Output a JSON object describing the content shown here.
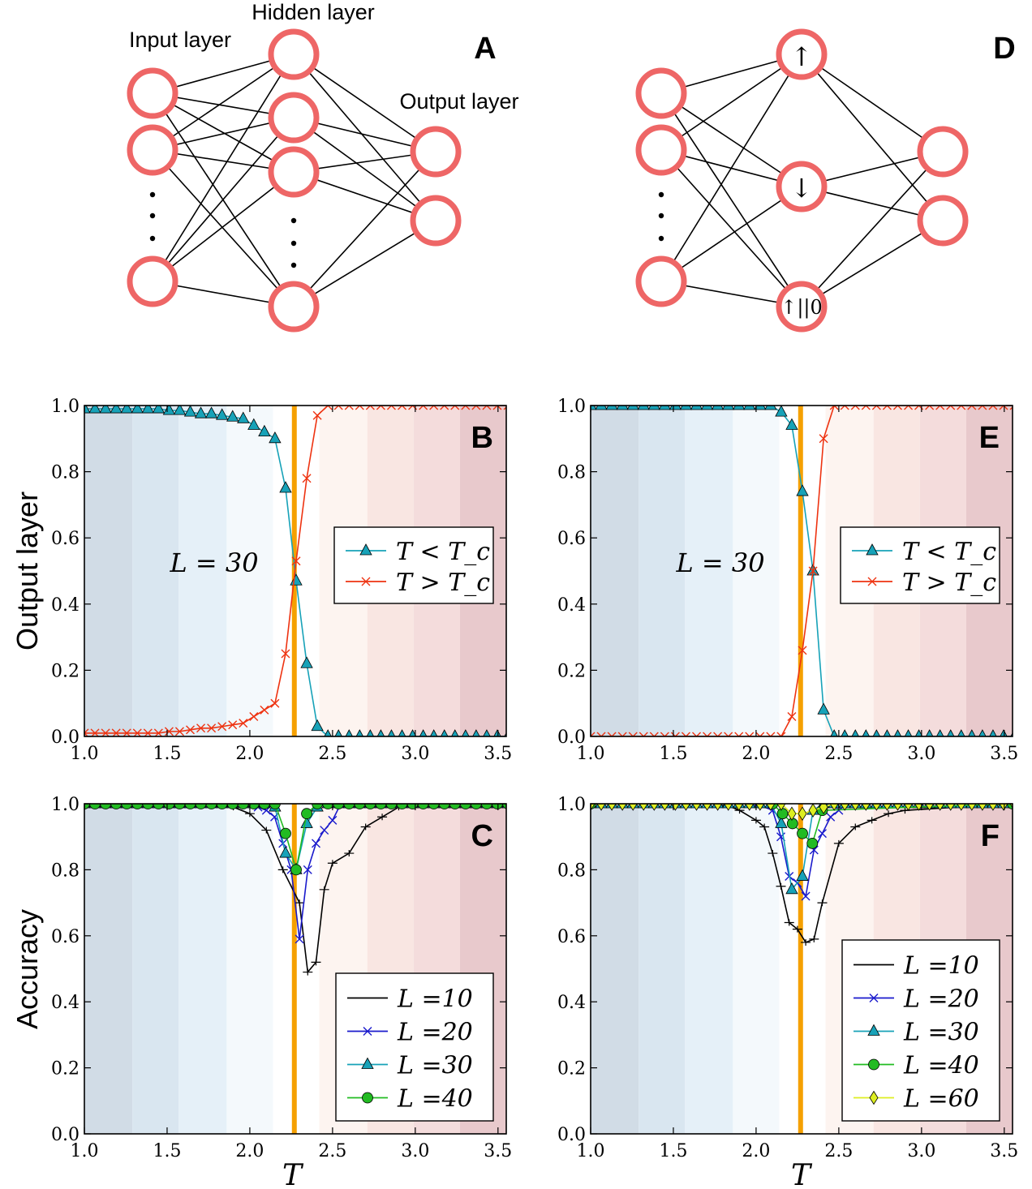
{
  "diagrams": {
    "A": {
      "panel_label": "A",
      "input_label": "Input layer",
      "hidden_label": "Hidden layer",
      "output_label": "Output layer",
      "node_color": "#ee6666"
    },
    "D": {
      "panel_label": "D",
      "hidden_symbols": [
        "↑",
        "↓",
        "↑||0"
      ],
      "node_color": "#ee6666"
    }
  },
  "shared": {
    "row_ylabels": [
      "Output layer",
      "Accuracy"
    ],
    "xlabel": "T",
    "tc_line_color": "#f5a000",
    "tc": 2.269,
    "background_bands": {
      "edges": [
        1.0,
        1.29,
        1.57,
        1.86,
        2.14,
        2.42,
        2.71,
        2.99,
        3.27,
        3.55
      ],
      "colors": [
        "#d1dce6",
        "#d9e6f0",
        "#e5f0f8",
        "#f4f9fc",
        "#ffffff",
        "#fdf4f0",
        "#f9e6e2",
        "#f4dcdc",
        "#e8c9cc"
      ]
    }
  },
  "chart_data": [
    {
      "panel": "B",
      "type": "line",
      "xlim": [
        1.0,
        3.55
      ],
      "ylim": [
        0.0,
        1.0
      ],
      "xticks": [
        "1.0",
        "1.5",
        "2.0",
        "2.5",
        "3.0",
        "3.5"
      ],
      "yticks": [
        "0.0",
        "0.2",
        "0.4",
        "0.6",
        "0.8",
        "1.0"
      ],
      "annotation": "L = 30",
      "legend": "center-right",
      "x": [
        1.0,
        1.064,
        1.128,
        1.192,
        1.256,
        1.32,
        1.384,
        1.448,
        1.512,
        1.576,
        1.64,
        1.704,
        1.768,
        1.832,
        1.896,
        1.96,
        2.024,
        2.088,
        2.152,
        2.216,
        2.28,
        2.344,
        2.408,
        2.472,
        2.536,
        2.6,
        2.664,
        2.728,
        2.792,
        2.856,
        2.92,
        2.984,
        3.048,
        3.112,
        3.176,
        3.24,
        3.304,
        3.368,
        3.432,
        3.496,
        3.56
      ],
      "series": [
        {
          "name": "T < T_c",
          "color": "#17a2b8",
          "marker": "triangle",
          "values": [
            0.99,
            0.99,
            0.99,
            0.99,
            0.99,
            0.99,
            0.99,
            0.99,
            0.985,
            0.985,
            0.98,
            0.975,
            0.975,
            0.97,
            0.965,
            0.96,
            0.94,
            0.92,
            0.9,
            0.75,
            0.47,
            0.22,
            0.03,
            0.0,
            0.0,
            0.0,
            0.0,
            0.0,
            0.0,
            0.0,
            0.0,
            0.0,
            0.0,
            0.0,
            0.0,
            0.0,
            0.0,
            0.0,
            0.0,
            0.0,
            0.0
          ]
        },
        {
          "name": "T > T_c",
          "color": "#ee3311",
          "marker": "x",
          "values": [
            0.01,
            0.01,
            0.01,
            0.01,
            0.01,
            0.01,
            0.01,
            0.01,
            0.015,
            0.015,
            0.02,
            0.025,
            0.025,
            0.03,
            0.035,
            0.04,
            0.06,
            0.08,
            0.1,
            0.25,
            0.53,
            0.78,
            0.97,
            1.0,
            1.0,
            1.0,
            1.0,
            1.0,
            1.0,
            1.0,
            1.0,
            1.0,
            1.0,
            1.0,
            1.0,
            1.0,
            1.0,
            1.0,
            1.0,
            1.0,
            1.0
          ]
        }
      ]
    },
    {
      "panel": "E",
      "type": "line",
      "xlim": [
        1.0,
        3.55
      ],
      "ylim": [
        0.0,
        1.0
      ],
      "xticks": [
        "1.0",
        "1.5",
        "2.0",
        "2.5",
        "3.0",
        "3.5"
      ],
      "yticks": [
        "0.0",
        "0.2",
        "0.4",
        "0.6",
        "0.8",
        "1.0"
      ],
      "annotation": "L = 30",
      "legend": "center-right",
      "x": [
        1.0,
        1.064,
        1.128,
        1.192,
        1.256,
        1.32,
        1.384,
        1.448,
        1.512,
        1.576,
        1.64,
        1.704,
        1.768,
        1.832,
        1.896,
        1.96,
        2.024,
        2.088,
        2.152,
        2.216,
        2.28,
        2.344,
        2.408,
        2.472,
        2.536,
        2.6,
        2.664,
        2.728,
        2.792,
        2.856,
        2.92,
        2.984,
        3.048,
        3.112,
        3.176,
        3.24,
        3.304,
        3.368,
        3.432,
        3.496,
        3.56
      ],
      "series": [
        {
          "name": "T < T_c",
          "color": "#17a2b8",
          "marker": "triangle",
          "values": [
            1.0,
            1.0,
            1.0,
            1.0,
            1.0,
            1.0,
            1.0,
            1.0,
            1.0,
            1.0,
            1.0,
            1.0,
            1.0,
            1.0,
            1.0,
            1.0,
            1.0,
            1.0,
            0.98,
            0.94,
            0.74,
            0.5,
            0.08,
            0.0,
            0.0,
            0.0,
            0.0,
            0.0,
            0.0,
            0.0,
            0.0,
            0.0,
            0.0,
            0.0,
            0.0,
            0.0,
            0.0,
            0.0,
            0.0,
            0.0,
            0.0
          ]
        },
        {
          "name": "T > T_c",
          "color": "#ee3311",
          "marker": "x",
          "values": [
            0.0,
            0.0,
            0.0,
            0.0,
            0.0,
            0.0,
            0.0,
            0.0,
            0.0,
            0.0,
            0.0,
            0.0,
            0.0,
            0.0,
            0.0,
            0.0,
            0.0,
            0.0,
            0.0,
            0.06,
            0.26,
            0.5,
            0.9,
            1.0,
            1.0,
            1.0,
            1.0,
            1.0,
            1.0,
            1.0,
            1.0,
            1.0,
            1.0,
            1.0,
            1.0,
            1.0,
            1.0,
            1.0,
            1.0,
            1.0,
            1.0
          ]
        }
      ]
    },
    {
      "panel": "C",
      "type": "line",
      "xlim": [
        1.0,
        3.55
      ],
      "ylim": [
        0.0,
        1.0
      ],
      "xticks": [
        "1.0",
        "1.5",
        "2.0",
        "2.5",
        "3.0",
        "3.5"
      ],
      "yticks": [
        "0.0",
        "0.2",
        "0.4",
        "0.6",
        "0.8",
        "1.0"
      ],
      "legend": "lower-right",
      "series": [
        {
          "name": "L =10",
          "color": "#000000",
          "marker": "errorbar",
          "x": [
            1.0,
            1.5,
            1.8,
            1.9,
            2.0,
            2.1,
            2.2,
            2.3,
            2.35,
            2.4,
            2.45,
            2.5,
            2.6,
            2.7,
            2.8,
            2.9,
            3.0,
            3.5,
            3.55
          ],
          "values": [
            1.0,
            1.0,
            1.0,
            0.99,
            0.97,
            0.92,
            0.8,
            0.7,
            0.49,
            0.52,
            0.74,
            0.82,
            0.85,
            0.93,
            0.96,
            0.99,
            1.0,
            1.0,
            1.0
          ]
        },
        {
          "name": "L =20",
          "color": "#1a1acc",
          "marker": "x",
          "x": [
            1.0,
            2.0,
            2.05,
            2.1,
            2.15,
            2.2,
            2.25,
            2.3,
            2.35,
            2.4,
            2.45,
            2.5,
            2.55,
            3.55
          ],
          "values": [
            1.0,
            1.0,
            0.99,
            0.98,
            0.96,
            0.88,
            0.8,
            0.59,
            0.8,
            0.88,
            0.92,
            0.95,
            1.0,
            1.0
          ]
        },
        {
          "name": "L =30",
          "color": "#17a2b8",
          "marker": "triangle",
          "x": [
            1.0,
            1.064,
            1.128,
            1.192,
            1.256,
            1.32,
            1.384,
            1.448,
            1.512,
            1.576,
            1.64,
            1.704,
            1.768,
            1.832,
            1.896,
            1.96,
            2.024,
            2.088,
            2.152,
            2.216,
            2.28,
            2.344,
            2.408,
            2.472,
            2.536,
            2.6,
            2.664,
            2.728,
            2.792,
            2.856,
            2.92,
            2.984,
            3.048,
            3.112,
            3.176,
            3.24,
            3.304,
            3.368,
            3.432,
            3.496,
            3.56
          ],
          "values": [
            1.0,
            1.0,
            1.0,
            1.0,
            1.0,
            1.0,
            1.0,
            1.0,
            1.0,
            1.0,
            1.0,
            1.0,
            1.0,
            1.0,
            1.0,
            1.0,
            1.0,
            1.0,
            0.99,
            0.85,
            0.8,
            0.94,
            0.99,
            1.0,
            1.0,
            1.0,
            1.0,
            1.0,
            1.0,
            1.0,
            1.0,
            1.0,
            1.0,
            1.0,
            1.0,
            1.0,
            1.0,
            1.0,
            1.0,
            1.0,
            1.0
          ]
        },
        {
          "name": "L =40",
          "color": "#22bb22",
          "marker": "circle",
          "x": [
            1.0,
            1.064,
            1.128,
            1.192,
            1.256,
            1.32,
            1.384,
            1.448,
            1.512,
            1.576,
            1.64,
            1.704,
            1.768,
            1.832,
            1.896,
            1.96,
            2.024,
            2.088,
            2.152,
            2.216,
            2.28,
            2.344,
            2.408,
            2.472,
            2.536,
            2.6,
            2.664,
            2.728,
            2.792,
            2.856,
            2.92,
            2.984,
            3.048,
            3.112,
            3.176,
            3.24,
            3.304,
            3.368,
            3.432,
            3.496,
            3.56
          ],
          "values": [
            1.0,
            1.0,
            1.0,
            1.0,
            1.0,
            1.0,
            1.0,
            1.0,
            1.0,
            1.0,
            1.0,
            1.0,
            1.0,
            1.0,
            1.0,
            1.0,
            1.0,
            1.0,
            1.0,
            0.91,
            0.8,
            0.97,
            1.0,
            1.0,
            1.0,
            1.0,
            1.0,
            1.0,
            1.0,
            1.0,
            1.0,
            1.0,
            1.0,
            1.0,
            1.0,
            1.0,
            1.0,
            1.0,
            1.0,
            1.0,
            1.0
          ]
        }
      ]
    },
    {
      "panel": "F",
      "type": "line",
      "xlim": [
        1.0,
        3.55
      ],
      "ylim": [
        0.0,
        1.0
      ],
      "xticks": [
        "1.0",
        "1.5",
        "2.0",
        "2.5",
        "3.0",
        "3.5"
      ],
      "yticks": [
        "0.0",
        "0.2",
        "0.4",
        "0.6",
        "0.8",
        "1.0"
      ],
      "legend": "lower-right",
      "series": [
        {
          "name": "L =10",
          "color": "#000000",
          "marker": "errorbar",
          "x": [
            1.0,
            1.8,
            1.9,
            2.0,
            2.05,
            2.1,
            2.15,
            2.2,
            2.25,
            2.3,
            2.35,
            2.4,
            2.5,
            2.6,
            2.7,
            2.8,
            2.9,
            3.55
          ],
          "values": [
            1.0,
            1.0,
            0.98,
            0.95,
            0.93,
            0.85,
            0.75,
            0.64,
            0.62,
            0.58,
            0.59,
            0.7,
            0.88,
            0.93,
            0.95,
            0.97,
            0.98,
            1.0
          ]
        },
        {
          "name": "L =20",
          "color": "#1a1acc",
          "marker": "x",
          "x": [
            1.0,
            2.0,
            2.1,
            2.15,
            2.2,
            2.25,
            2.3,
            2.35,
            2.4,
            2.45,
            2.5,
            2.55,
            3.55
          ],
          "values": [
            1.0,
            1.0,
            0.98,
            0.9,
            0.78,
            0.76,
            0.72,
            0.86,
            0.91,
            0.96,
            0.98,
            1.0,
            1.0
          ]
        },
        {
          "name": "L =30",
          "color": "#17a2b8",
          "marker": "triangle",
          "x": [
            1.0,
            1.064,
            1.128,
            1.192,
            1.256,
            1.32,
            1.384,
            1.448,
            1.512,
            1.576,
            1.64,
            1.704,
            1.768,
            1.832,
            1.896,
            1.96,
            2.024,
            2.088,
            2.152,
            2.216,
            2.28,
            2.344,
            2.408,
            2.472,
            2.536,
            2.6,
            2.664,
            2.728,
            2.792,
            2.856,
            2.92,
            2.984,
            3.048,
            3.112,
            3.176,
            3.24,
            3.304,
            3.368,
            3.432,
            3.496,
            3.56
          ],
          "values": [
            1.0,
            1.0,
            1.0,
            1.0,
            1.0,
            1.0,
            1.0,
            1.0,
            1.0,
            1.0,
            1.0,
            1.0,
            1.0,
            1.0,
            1.0,
            1.0,
            1.0,
            1.0,
            0.94,
            0.74,
            0.78,
            0.98,
            1.0,
            1.0,
            1.0,
            1.0,
            1.0,
            1.0,
            1.0,
            1.0,
            1.0,
            1.0,
            1.0,
            1.0,
            1.0,
            1.0,
            1.0,
            1.0,
            1.0,
            1.0,
            1.0
          ]
        },
        {
          "name": "L =40",
          "color": "#22bb22",
          "marker": "circle",
          "x": [
            1.0,
            2.1,
            2.16,
            2.22,
            2.28,
            2.34,
            2.4,
            3.55
          ],
          "values": [
            1.0,
            1.0,
            0.97,
            0.94,
            0.91,
            0.88,
            0.98,
            1.0
          ]
        },
        {
          "name": "L =60",
          "color": "#ddee22",
          "marker": "diamond",
          "x": [
            1.0,
            1.064,
            1.128,
            1.192,
            1.256,
            1.32,
            1.384,
            1.448,
            1.512,
            1.576,
            1.64,
            1.704,
            1.768,
            1.832,
            1.896,
            1.96,
            2.024,
            2.088,
            2.152,
            2.216,
            2.28,
            2.344,
            2.408,
            2.472,
            2.536,
            2.6,
            2.664,
            2.728,
            2.792,
            2.856,
            2.92,
            2.984,
            3.048,
            3.112,
            3.176,
            3.24,
            3.304,
            3.368,
            3.432,
            3.496,
            3.56
          ],
          "values": [
            1.0,
            1.0,
            1.0,
            1.0,
            1.0,
            1.0,
            1.0,
            1.0,
            1.0,
            1.0,
            1.0,
            1.0,
            1.0,
            1.0,
            1.0,
            1.0,
            1.0,
            1.0,
            1.0,
            0.97,
            0.97,
            0.98,
            0.99,
            1.0,
            1.0,
            1.0,
            1.0,
            1.0,
            1.0,
            1.0,
            1.0,
            1.0,
            1.0,
            1.0,
            1.0,
            1.0,
            1.0,
            1.0,
            1.0,
            1.0,
            1.0
          ]
        }
      ]
    }
  ]
}
